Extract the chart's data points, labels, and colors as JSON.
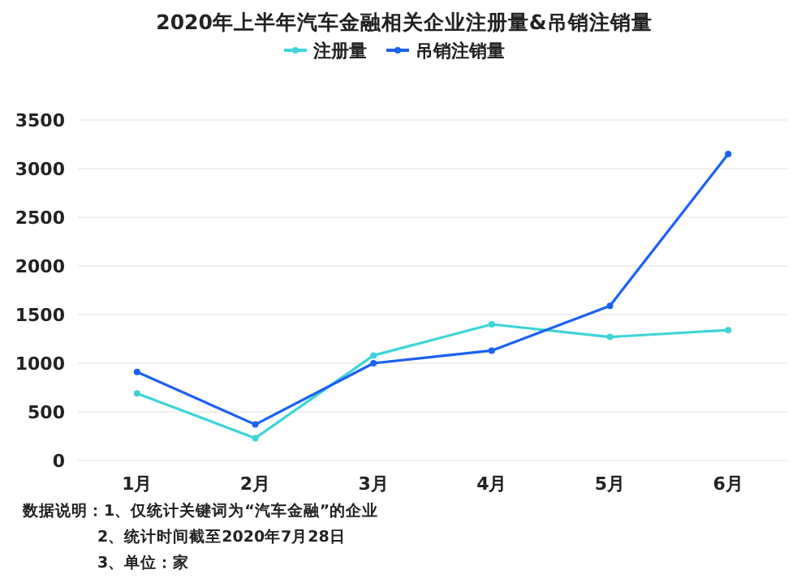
{
  "chart_data": {
    "type": "line",
    "title": "2020年上半年汽车金融相关企业注册量&吊销注销量",
    "categories": [
      "1月",
      "2月",
      "3月",
      "4月",
      "5月",
      "6月"
    ],
    "series": [
      {
        "name": "注册量",
        "color": "#3dd4d8",
        "values": [
          690,
          230,
          1080,
          1400,
          1270,
          1340
        ]
      },
      {
        "name": "吊销注销量",
        "color": "#1a62f0",
        "values": [
          910,
          370,
          1000,
          1130,
          1590,
          3150
        ]
      }
    ],
    "ylim": [
      0,
      3500
    ],
    "yticks": [
      0,
      500,
      1000,
      1500,
      2000,
      2500,
      3000,
      3500
    ],
    "grid": "y",
    "legend": "top",
    "marker": "circle",
    "annotations": [
      "数据说明：1、仅统计关键词为“汽车金融”的企业",
      "2、统计时间截至2020年7月28日",
      "3、单位：家"
    ]
  }
}
